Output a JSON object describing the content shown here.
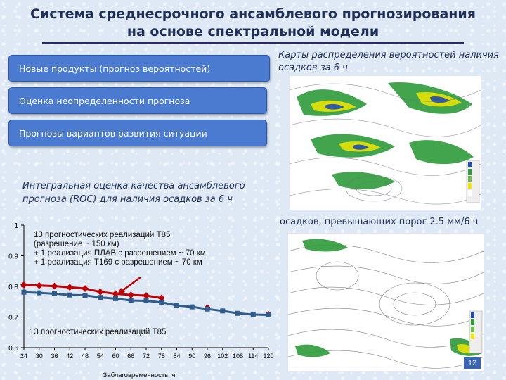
{
  "slide": {
    "title": "Система среднесрочного ансамблевого прогнозирования на основе спектральной модели",
    "buttons": [
      "Новые продукты (прогноз вероятностей)",
      "Оценка неопределенности прогноза",
      "Прогнозы вариантов развития ситуации"
    ],
    "maps_caption": "Карты распределения вероятностей наличия осадков за 6 ч",
    "map2_caption": "осадков, превышающих порог 2.5 мм/6 ч",
    "roc_title": "Интегральная оценка качества ансамблевого прогноза (ROC) для наличия осадков за 6 ч",
    "page_number": "12",
    "colors": {
      "button": "#4a7bd1",
      "title": "#1f2f5a",
      "series_red": "#c00000",
      "series_blue": "#2f5c8a"
    }
  },
  "chart_data": {
    "type": "line",
    "xlabel": "Заблаговременность, ч",
    "ylabel": "",
    "x": [
      24,
      30,
      36,
      42,
      48,
      54,
      60,
      66,
      72,
      78,
      84,
      90,
      96,
      102,
      108,
      114,
      120
    ],
    "ylim": [
      0.6,
      1.0
    ],
    "yticks": [
      "0.6",
      "0.7",
      "0.8",
      "0.9",
      "1"
    ],
    "series": [
      {
        "name": "13 прогностических реализаций Т85 (разрешение ~ 150 км) + 1 реализация ПЛАВ с разрешением ~ 70 км + 1 реализация Т169 с разрешением ~ 70 км",
        "color": "#c00000",
        "line_x": [
          24,
          30,
          36,
          42,
          48,
          54,
          60,
          66,
          72,
          78
        ],
        "line_y": [
          0.805,
          0.803,
          0.801,
          0.797,
          0.793,
          0.782,
          0.776,
          0.772,
          0.77,
          0.762
        ],
        "extra_points": [
          [
            96,
            0.732
          ],
          [
            120,
            0.71
          ]
        ]
      },
      {
        "name": "13 прогностических реализаций Т85",
        "color": "#2f5c8a",
        "line_x": [
          24,
          30,
          36,
          42,
          48,
          54,
          60,
          66,
          72,
          78,
          84,
          90,
          96,
          102,
          108,
          114,
          120
        ],
        "line_y": [
          0.781,
          0.779,
          0.776,
          0.772,
          0.771,
          0.764,
          0.76,
          0.754,
          0.753,
          0.748,
          0.738,
          0.733,
          0.726,
          0.72,
          0.712,
          0.708,
          0.707
        ]
      }
    ],
    "annotations": [
      "13 прогностических реализаций Т85\n(разрешение ~ 150 км)\n+ 1 реализация ПЛАВ с разрешением  ~ 70 км\n+ 1 реализация Т169 с разрешением ~ 70 км",
      "13 прогностических реализаций Т85"
    ]
  }
}
